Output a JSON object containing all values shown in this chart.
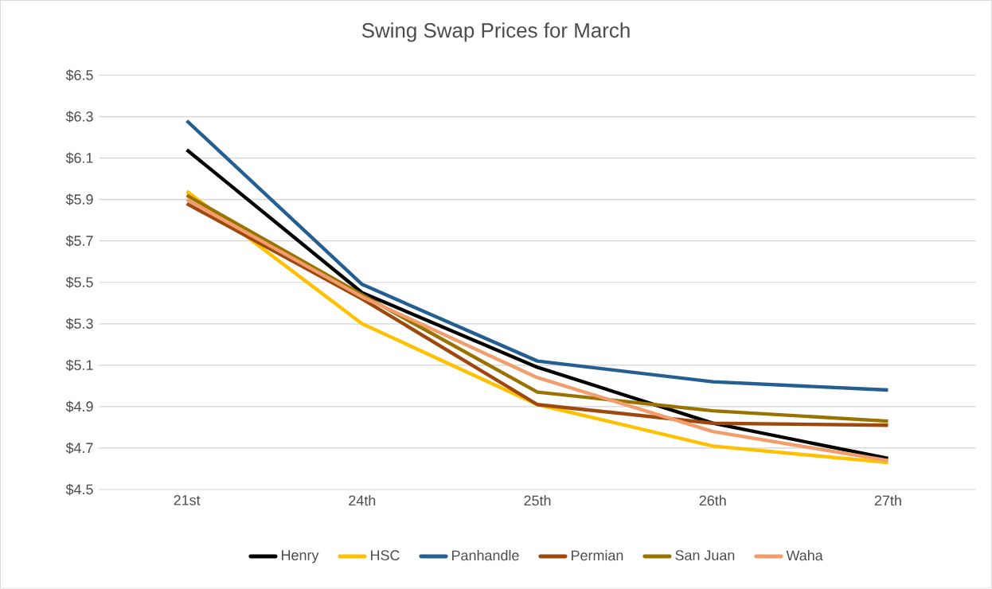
{
  "chart_data": {
    "type": "line",
    "title": "Swing Swap Prices for March",
    "categories": [
      "21st",
      "24th",
      "25th",
      "26th",
      "27th"
    ],
    "series": [
      {
        "name": "Henry",
        "color": "#000000",
        "values": [
          6.14,
          5.45,
          5.09,
          4.82,
          4.65
        ]
      },
      {
        "name": "HSC",
        "color": "#ffc000",
        "values": [
          5.94,
          5.3,
          4.91,
          4.71,
          4.63
        ]
      },
      {
        "name": "Panhandle",
        "color": "#255e91",
        "values": [
          6.28,
          5.49,
          5.12,
          5.02,
          4.98
        ]
      },
      {
        "name": "Permian",
        "color": "#9e480e",
        "values": [
          5.88,
          5.42,
          4.91,
          4.82,
          4.81
        ]
      },
      {
        "name": "San Juan",
        "color": "#997300",
        "values": [
          5.92,
          5.44,
          4.97,
          4.88,
          4.83
        ]
      },
      {
        "name": "Waha",
        "color": "#f19e6c",
        "values": [
          5.9,
          5.43,
          5.04,
          4.78,
          4.64
        ]
      }
    ],
    "ylim": [
      4.5,
      6.5
    ],
    "yticks": [
      {
        "value": 4.5,
        "label": "$4.5"
      },
      {
        "value": 4.7,
        "label": "$4.7"
      },
      {
        "value": 4.9,
        "label": "$4.9"
      },
      {
        "value": 5.1,
        "label": "$5.1"
      },
      {
        "value": 5.3,
        "label": "$5.3"
      },
      {
        "value": 5.5,
        "label": "$5.5"
      },
      {
        "value": 5.7,
        "label": "$5.7"
      },
      {
        "value": 5.9,
        "label": "$5.9"
      },
      {
        "value": 6.1,
        "label": "$6.1"
      },
      {
        "value": 6.3,
        "label": "$6.3"
      },
      {
        "value": 6.5,
        "label": "$6.5"
      }
    ],
    "grid": "y",
    "legend": "bottom",
    "marker": "none",
    "line_style": "solid"
  }
}
